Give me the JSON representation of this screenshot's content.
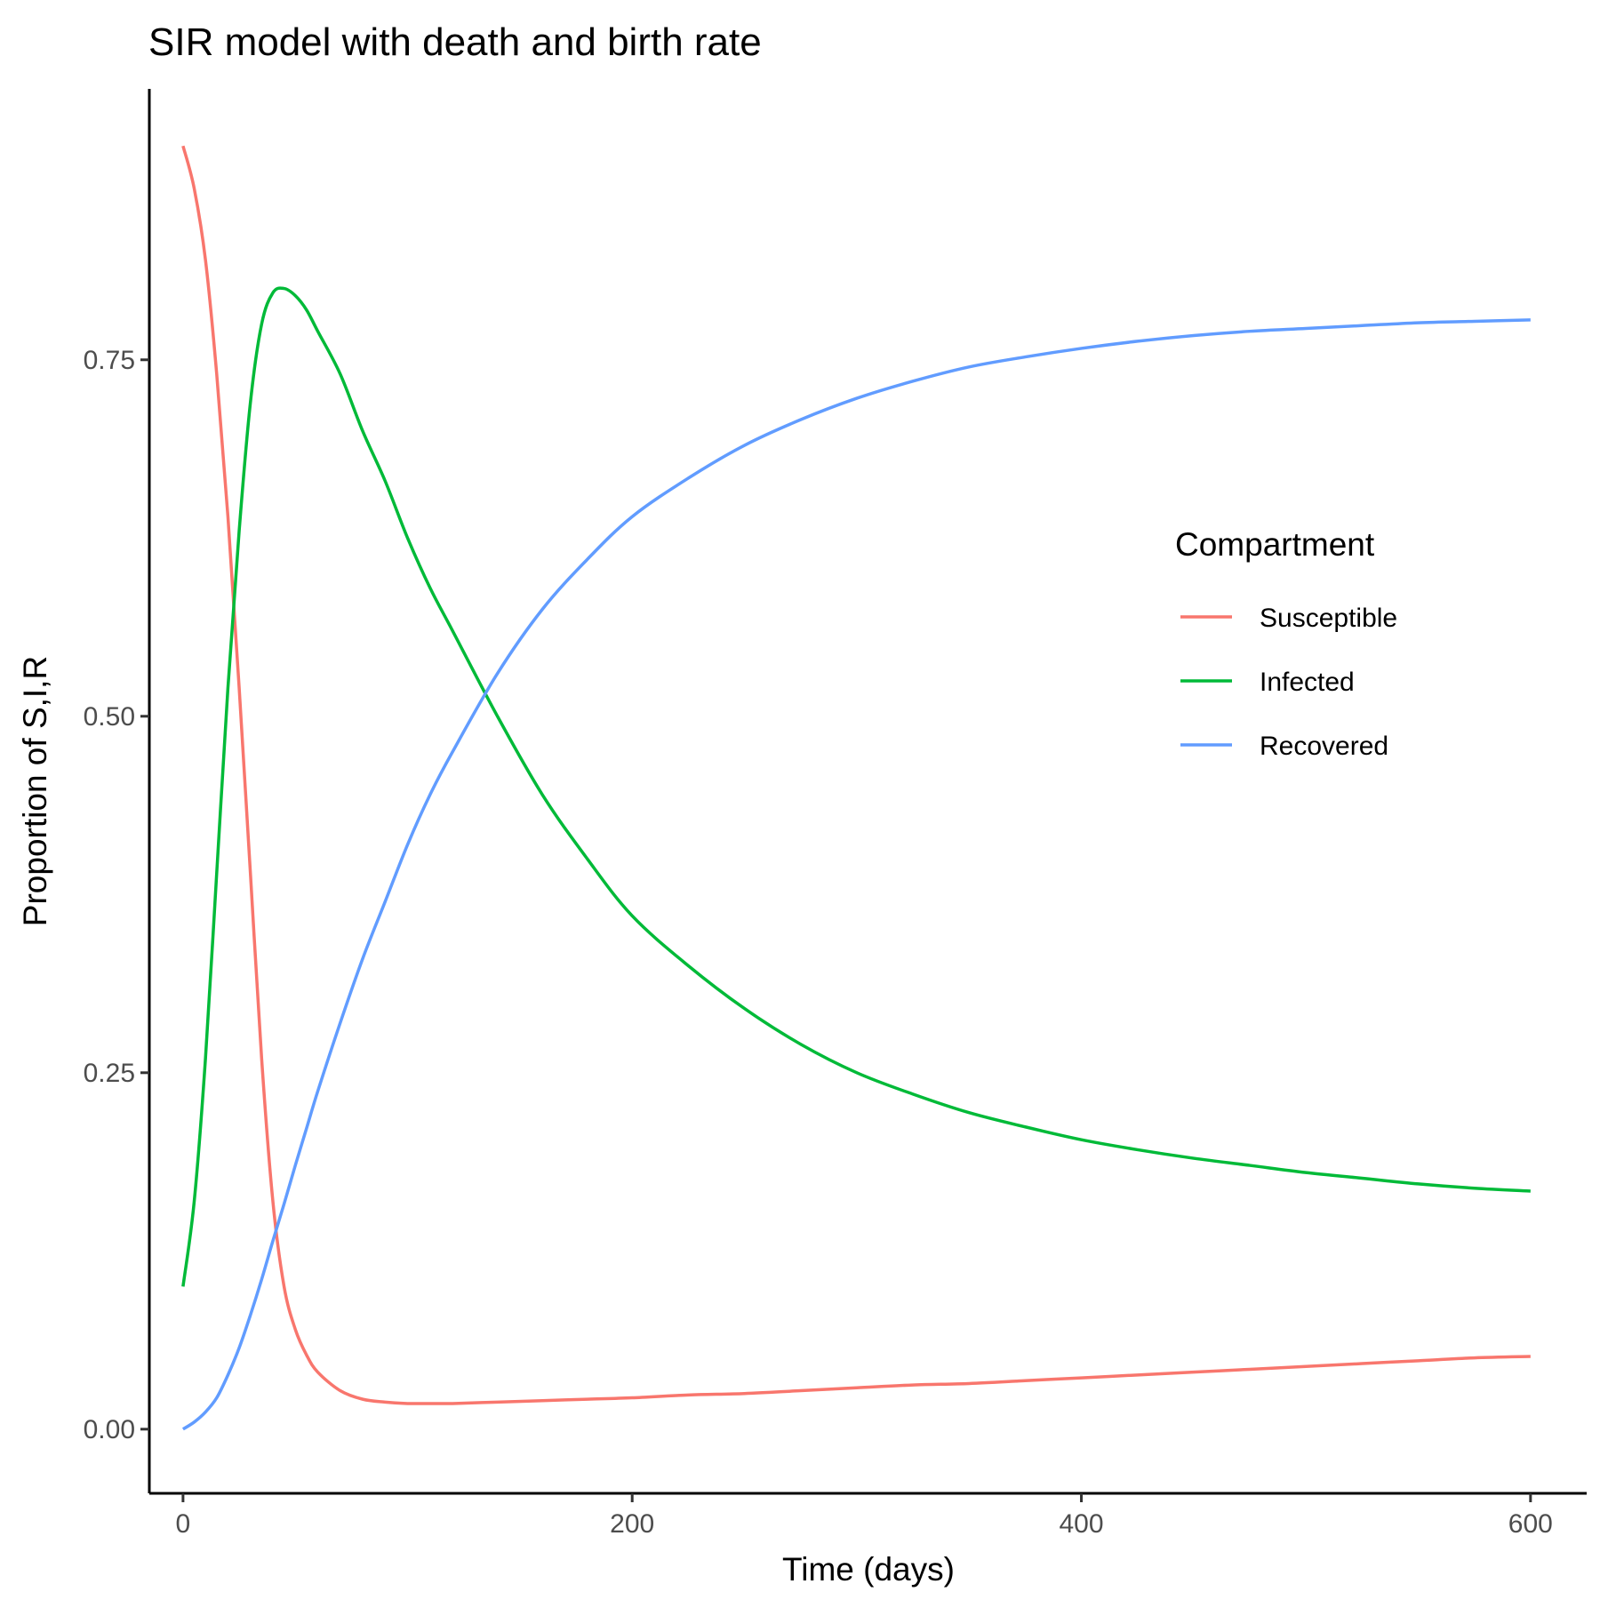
{
  "chart_data": {
    "type": "line",
    "title": "SIR model with death and birth rate",
    "xlabel": "Time (days)",
    "ylabel": "Proportion of S,I,R",
    "xlim": [
      -15,
      625
    ],
    "ylim": [
      -0.045,
      0.94
    ],
    "x_ticks": [
      0,
      200,
      400,
      600
    ],
    "x_tick_labels": [
      "0",
      "200",
      "400",
      "600"
    ],
    "y_ticks": [
      0,
      0.25,
      0.5,
      0.75
    ],
    "y_tick_labels": [
      "0.00",
      "0.25",
      "0.50",
      "0.75"
    ],
    "grid": false,
    "legend": {
      "title": "Compartment",
      "position": "right-inside"
    },
    "x": [
      0,
      5,
      10,
      15,
      20,
      25,
      30,
      35,
      40,
      45,
      50,
      55,
      60,
      70,
      80,
      90,
      100,
      110,
      120,
      140,
      160,
      180,
      200,
      225,
      250,
      275,
      300,
      325,
      350,
      375,
      400,
      425,
      450,
      475,
      500,
      525,
      550,
      575,
      600
    ],
    "series": [
      {
        "name": "Susceptible",
        "color": "#F8766D",
        "values": [
          0.9,
          0.87,
          0.82,
          0.74,
          0.64,
          0.52,
          0.39,
          0.26,
          0.16,
          0.1,
          0.07,
          0.052,
          0.04,
          0.027,
          0.021,
          0.019,
          0.018,
          0.018,
          0.018,
          0.019,
          0.02,
          0.021,
          0.022,
          0.024,
          0.025,
          0.027,
          0.029,
          0.031,
          0.032,
          0.034,
          0.036,
          0.038,
          0.04,
          0.042,
          0.044,
          0.046,
          0.048,
          0.05,
          0.051
        ]
      },
      {
        "name": "Infected",
        "color": "#00BA38",
        "values": [
          0.1,
          0.16,
          0.26,
          0.39,
          0.52,
          0.63,
          0.72,
          0.775,
          0.797,
          0.8,
          0.795,
          0.785,
          0.77,
          0.74,
          0.7,
          0.665,
          0.625,
          0.59,
          0.56,
          0.5,
          0.445,
          0.4,
          0.36,
          0.325,
          0.295,
          0.27,
          0.25,
          0.235,
          0.222,
          0.212,
          0.203,
          0.196,
          0.19,
          0.185,
          0.18,
          0.176,
          0.172,
          0.169,
          0.167
        ]
      },
      {
        "name": "Recovered",
        "color": "#619CFF",
        "values": [
          0.0,
          0.005,
          0.012,
          0.022,
          0.038,
          0.057,
          0.08,
          0.105,
          0.132,
          0.158,
          0.185,
          0.211,
          0.237,
          0.285,
          0.33,
          0.37,
          0.41,
          0.445,
          0.475,
          0.53,
          0.575,
          0.61,
          0.64,
          0.667,
          0.69,
          0.708,
          0.723,
          0.735,
          0.745,
          0.752,
          0.758,
          0.763,
          0.767,
          0.77,
          0.772,
          0.774,
          0.776,
          0.777,
          0.778
        ]
      }
    ]
  }
}
